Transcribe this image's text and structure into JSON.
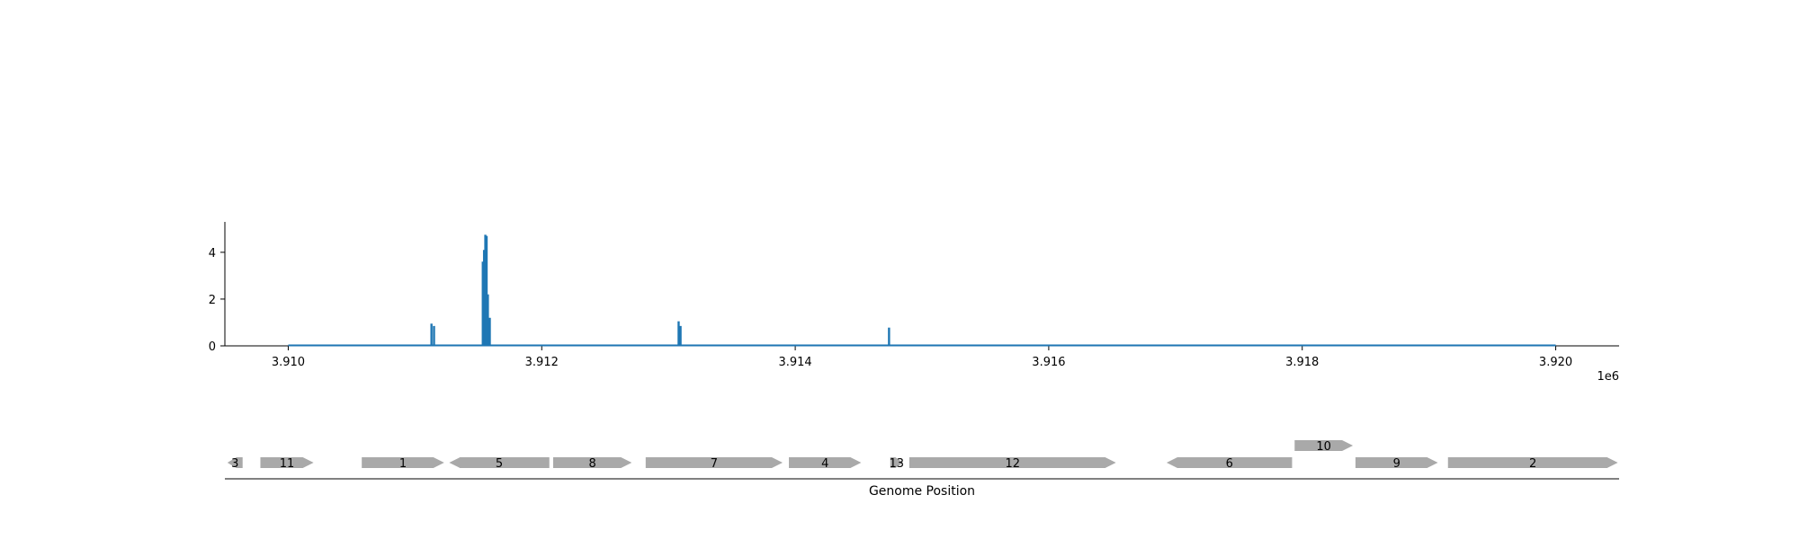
{
  "chart_data": {
    "type": "area",
    "x_multiplier_label": "1e6",
    "xlabel": "Genome Position",
    "ylabel": "",
    "xlim": [
      3909500,
      3920500
    ],
    "ylim": [
      0,
      5.3
    ],
    "x_ticks": [
      3910000,
      3912000,
      3914000,
      3916000,
      3918000,
      3920000
    ],
    "x_tick_labels": [
      "3.910",
      "3.912",
      "3.914",
      "3.916",
      "3.918",
      "3.920"
    ],
    "y_ticks": [
      0,
      2,
      4
    ],
    "y_tick_labels": [
      "0",
      "2",
      "4"
    ],
    "grid": false,
    "colors": {
      "coverage": "#1f77b4",
      "gene": "#a9a9a9",
      "axis": "#000000"
    },
    "coverage": {
      "baseline_range": [
        3910000,
        3920000
      ],
      "baseline_value": 0.02,
      "peaks": [
        {
          "x": 3911130,
          "y": 0.95
        },
        {
          "x": 3911150,
          "y": 0.85
        },
        {
          "x": 3911535,
          "y": 3.6
        },
        {
          "x": 3911545,
          "y": 4.1
        },
        {
          "x": 3911555,
          "y": 4.75
        },
        {
          "x": 3911565,
          "y": 4.7
        },
        {
          "x": 3911575,
          "y": 2.2
        },
        {
          "x": 3911590,
          "y": 1.2
        },
        {
          "x": 3913080,
          "y": 1.05
        },
        {
          "x": 3913095,
          "y": 0.85
        },
        {
          "x": 3914740,
          "y": 0.78
        }
      ]
    },
    "genes": [
      {
        "label": "3",
        "start": 3909520,
        "end": 3909640,
        "strand": "-",
        "row": 0
      },
      {
        "label": "11",
        "start": 3909780,
        "end": 3910200,
        "strand": "+",
        "row": 0
      },
      {
        "label": "1",
        "start": 3910580,
        "end": 3911230,
        "strand": "+",
        "row": 0
      },
      {
        "label": "5",
        "start": 3911270,
        "end": 3912060,
        "strand": "-",
        "row": 0
      },
      {
        "label": "8",
        "start": 3912090,
        "end": 3912710,
        "strand": "+",
        "row": 0
      },
      {
        "label": "7",
        "start": 3912820,
        "end": 3913900,
        "strand": "+",
        "row": 0
      },
      {
        "label": "4",
        "start": 3913950,
        "end": 3914520,
        "strand": "+",
        "row": 0
      },
      {
        "label": "13",
        "start": 3914750,
        "end": 3914850,
        "strand": "+",
        "row": 0
      },
      {
        "label": "12",
        "start": 3914900,
        "end": 3916530,
        "strand": "+",
        "row": 0
      },
      {
        "label": "6",
        "start": 3916930,
        "end": 3917920,
        "strand": "-",
        "row": 0
      },
      {
        "label": "10",
        "start": 3917940,
        "end": 3918400,
        "strand": "+",
        "row": 1
      },
      {
        "label": "9",
        "start": 3918420,
        "end": 3919070,
        "strand": "+",
        "row": 0
      },
      {
        "label": "2",
        "start": 3919150,
        "end": 3920490,
        "strand": "+",
        "row": 0
      }
    ]
  }
}
